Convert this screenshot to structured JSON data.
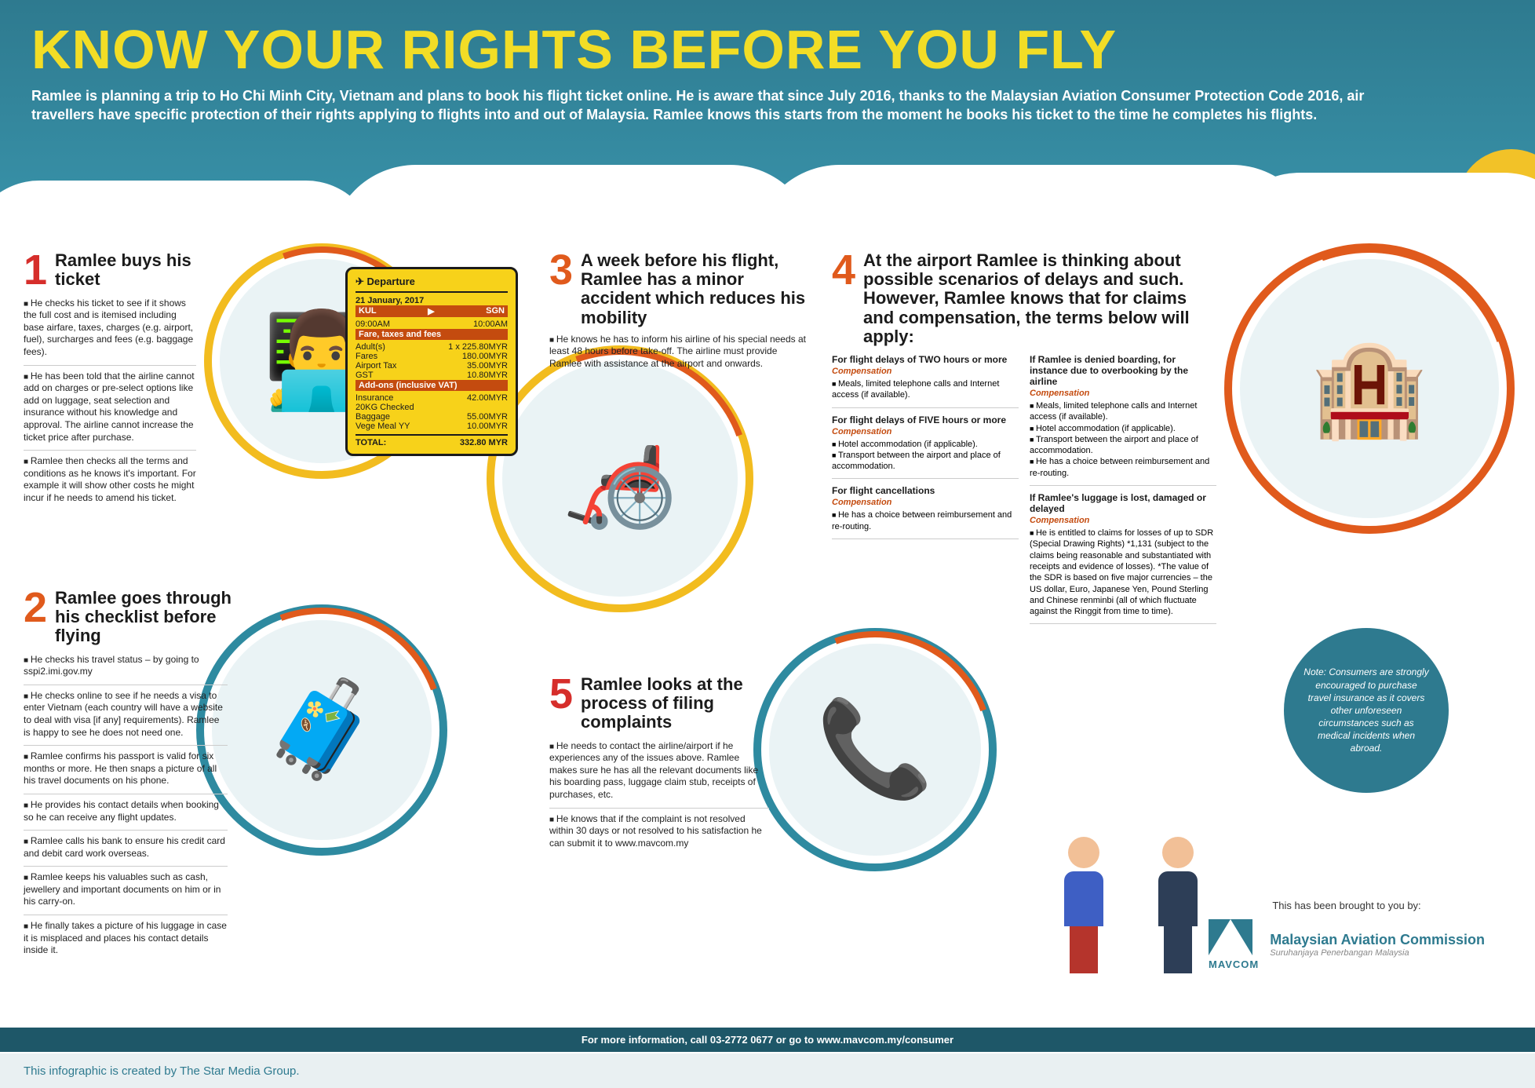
{
  "colors": {
    "header_bg_top": "#2e7a8f",
    "header_bg_bottom": "#3891a8",
    "title": "#f2dd26",
    "accent_orange": "#e05a1c",
    "accent_red": "#d62e2b",
    "accent_yellow": "#f2bc1f",
    "accent_teal": "#2e8aa0",
    "ticket_bg": "#f7d21a",
    "comp_label": "#c44b0f",
    "footer_bar": "#1e5768",
    "bottom_bar_bg": "#e9f0f2",
    "bottom_bar_text": "#2e7a8f"
  },
  "header": {
    "title": "KNOW YOUR RIGHTS BEFORE YOU FLY",
    "intro": "Ramlee is planning a trip to Ho Chi Minh City, Vietnam and plans to book his flight ticket online. He is aware that since July 2016, thanks to the Malaysian Aviation Consumer Protection Code 2016, air travellers have specific protection of their rights applying to flights into and out of Malaysia. Ramlee knows this starts from the moment he books his ticket to the time he completes his flights."
  },
  "s1": {
    "num": "1",
    "title": "Ramlee buys his ticket",
    "bullets": [
      "He checks his ticket to see if it shows the full cost and is itemised including base airfare, taxes, charges (e.g. airport, fuel), surcharges and fees (e.g. baggage fees).",
      "He has been told that the airline cannot add on charges or pre-select options like add on luggage, seat selection and insurance without his knowledge and approval. The airline cannot increase the ticket price after purchase.",
      "Ramlee then checks all the terms and conditions as he knows it's important. For example it will show other costs he might incur if he needs to amend his ticket."
    ]
  },
  "ticket": {
    "head": "✈ Departure",
    "date": "21 January, 2017",
    "from": "KUL",
    "to": "SGN",
    "dep_time": "09:00AM",
    "arr_time": "10:00AM",
    "fare_label": "Fare, taxes and fees",
    "rows1": [
      [
        "Adult(s)",
        "1 x 225.80MYR"
      ],
      [
        "Fares",
        "180.00MYR"
      ],
      [
        "Airport Tax",
        "35.00MYR"
      ],
      [
        "GST",
        "10.80MYR"
      ]
    ],
    "addons_label": "Add-ons (inclusive VAT)",
    "rows2": [
      [
        "Insurance",
        "42.00MYR"
      ],
      [
        "20KG Checked",
        ""
      ],
      [
        "Baggage",
        "55.00MYR"
      ],
      [
        "Vege Meal YY",
        "10.00MYR"
      ]
    ],
    "total_label": "TOTAL:",
    "total_value": "332.80 MYR"
  },
  "s2": {
    "num": "2",
    "title": "Ramlee goes through his checklist before flying",
    "bullets": [
      "He checks his travel status – by going to sspi2.imi.gov.my",
      "He checks online to see if he needs a visa to enter Vietnam (each country will have a website to deal with visa [if any] requirements). Ramlee is happy to see he does not need one.",
      "Ramlee confirms his passport is valid for six months or more. He then snaps a picture of all his travel documents on his phone.",
      "He provides his contact details when booking so he can receive any flight updates.",
      "Ramlee calls his bank to ensure his credit card and debit card work overseas.",
      "Ramlee keeps his valuables such as cash, jewellery and important documents on him or in his carry-on.",
      "He finally takes a picture of his luggage in case it is misplaced and places his contact details inside it."
    ]
  },
  "s3": {
    "num": "3",
    "title": "A week before his flight, Ramlee has a minor accident which reduces his mobility",
    "bullets": [
      "He knows he has to inform his airline of his special needs at least 48 hours before take-off. The airline must provide Ramlee with assistance at the airport and onwards."
    ]
  },
  "s4": {
    "num": "4",
    "title": "At the airport Ramlee is thinking about possible scenarios of delays and such. However, Ramlee knows that for claims and compensation, the terms below will apply:",
    "comp_label": "Compensation",
    "left": [
      {
        "h": "For flight delays of TWO hours or more",
        "items": [
          "Meals, limited telephone calls and Internet access (if available)."
        ]
      },
      {
        "h": "For flight delays of FIVE hours or more",
        "items": [
          "Hotel accommodation (if applicable).",
          "Transport between the airport and place of accommodation."
        ]
      },
      {
        "h": "For flight cancellations",
        "items": [
          "He has a choice between reimbursement and re-routing."
        ]
      }
    ],
    "right": [
      {
        "h": "If Ramlee is denied boarding, for instance due to overbooking by the airline",
        "items": [
          "Meals, limited telephone calls and Internet access (if available).",
          "Hotel accommodation (if applicable).",
          "Transport between the airport and place of accommodation.",
          "He has a choice between reimbursement and re-routing."
        ]
      },
      {
        "h": "If Ramlee's luggage is lost, damaged or delayed",
        "items": [
          "He is entitled to claims for losses of up to SDR (Special Drawing Rights) *1,131 (subject to the claims being reasonable and substantiated with receipts and evidence of losses). *The value of the SDR is based on five major currencies – the US dollar, Euro, Japanese Yen, Pound Sterling and Chinese renminbi (all of which fluctuate against the Ringgit from time to time)."
        ]
      }
    ]
  },
  "s5": {
    "num": "5",
    "title": "Ramlee looks at the process of filing complaints",
    "bullets": [
      "He needs to contact the airline/airport if he experiences any of the issues above. Ramlee makes sure he has all the relevant documents like his boarding pass, luggage claim stub, receipts of purchases, etc.",
      "He knows that if the complaint is not resolved within 30 days or not resolved to his satisfaction he can submit it to www.mavcom.my"
    ]
  },
  "note": "Note: Consumers are strongly encouraged to purchase travel insurance as it covers other unforeseen circumstances such as medical incidents when abroad.",
  "credits": {
    "brought": "This has been brought to you by:",
    "brand1": "Malaysian Aviation Commission",
    "brand2": "Suruhanjaya Penerbangan Malaysia",
    "brand_short": "MAVCOM"
  },
  "info_bar": "For more information, call 03-2772 0677 or go to www.mavcom.my/consumer",
  "bottom_credit": "This infographic is created by The Star Media Group."
}
